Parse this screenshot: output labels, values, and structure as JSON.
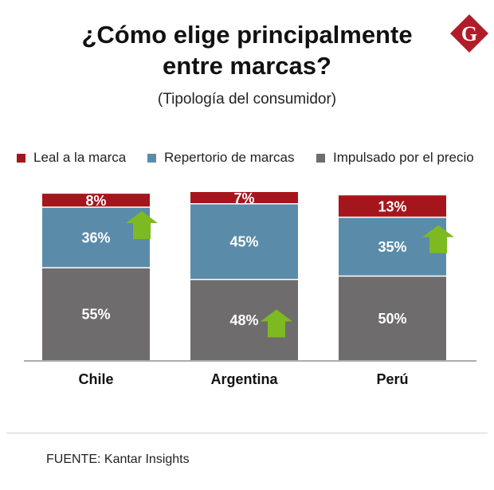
{
  "header": {
    "title_line1": "¿Cómo elige principalmente",
    "title_line2": "entre marcas?",
    "subtitle": "(Tipología del consumidor)",
    "logo_letter": "G"
  },
  "colors": {
    "leal": "#a5161c",
    "repertorio": "#5a8caa",
    "precio": "#6e6c6d",
    "arrow": "#7dba22",
    "logo": "#b01c2a",
    "axis": "#7a7a7a"
  },
  "chart_data": {
    "type": "bar",
    "stacked": true,
    "categories": [
      "Chile",
      "Argentina",
      "Perú"
    ],
    "series": [
      {
        "name": "Impulsado por el precio",
        "values": [
          55,
          48,
          50
        ],
        "labels": [
          "55%",
          "48%",
          "50%"
        ]
      },
      {
        "name": "Repertorio de marcas",
        "values": [
          36,
          45,
          35
        ],
        "labels": [
          "36%",
          "45%",
          "35%"
        ]
      },
      {
        "name": "Leal a la marca",
        "values": [
          8,
          7,
          13
        ],
        "labels": [
          "8%",
          "7%",
          "13%"
        ]
      }
    ],
    "trend_up": [
      {
        "category": "Chile",
        "series": "Repertorio de marcas"
      },
      {
        "category": "Argentina",
        "series": "Impulsado por el precio"
      },
      {
        "category": "Perú",
        "series": "Repertorio de marcas"
      }
    ],
    "legend": [
      "Leal a la marca",
      "Repertorio de marcas",
      "Impulsado por el precio"
    ],
    "title": "¿Cómo elige principalmente entre marcas?",
    "xlabel": "",
    "ylabel": "",
    "ylim": [
      0,
      100
    ],
    "grid": false,
    "legend_position": "top"
  },
  "footer": {
    "source": "FUENTE: Kantar Insights"
  }
}
